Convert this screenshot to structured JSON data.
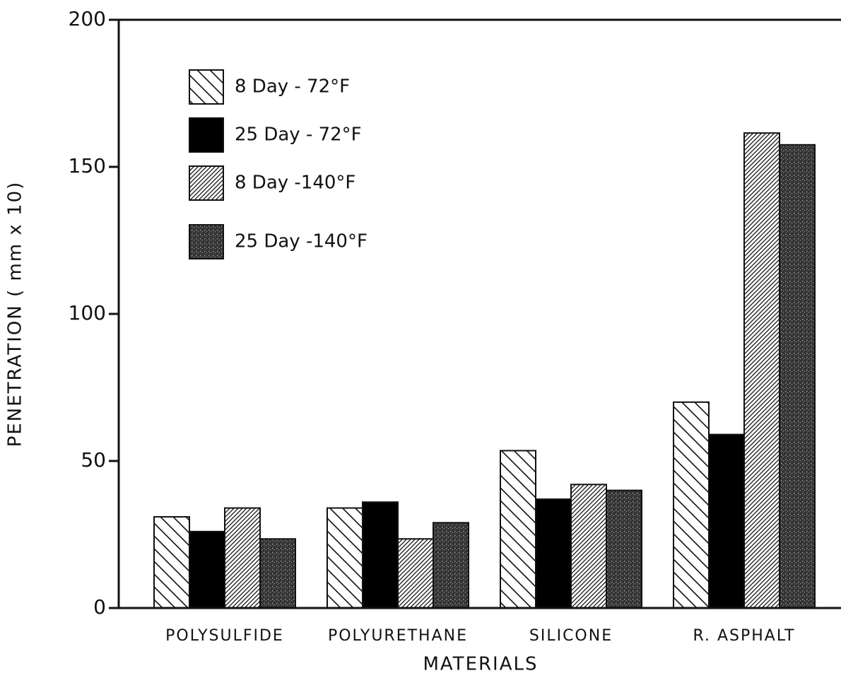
{
  "chart_data": {
    "type": "bar",
    "categories": [
      "POLYSULFIDE",
      "POLYURETHANE",
      "SILICONE",
      "R. ASPHALT"
    ],
    "series": [
      {
        "name": "8 Day - 72°F",
        "color": "#111111",
        "hatch": "backward",
        "values": [
          31,
          34,
          53.5,
          70
        ]
      },
      {
        "name": "25 Day - 72°F",
        "color": "#000000",
        "hatch": "solid",
        "values": [
          26,
          36,
          37,
          59
        ]
      },
      {
        "name": "8 Day -140°F",
        "color": "#111111",
        "hatch": "forward-dense",
        "values": [
          34,
          23.5,
          42,
          161.5
        ]
      },
      {
        "name": "25 Day -140°F",
        "color": "#222222",
        "hatch": "stipple",
        "values": [
          23.5,
          29,
          40,
          157.5
        ]
      }
    ],
    "ylim": [
      0,
      200
    ],
    "yticks": [
      0,
      50,
      100,
      150,
      200
    ],
    "y_label": "PENETRATION ( mm x 10)",
    "x_label": "MATERIALS",
    "legend": "upper-left"
  }
}
